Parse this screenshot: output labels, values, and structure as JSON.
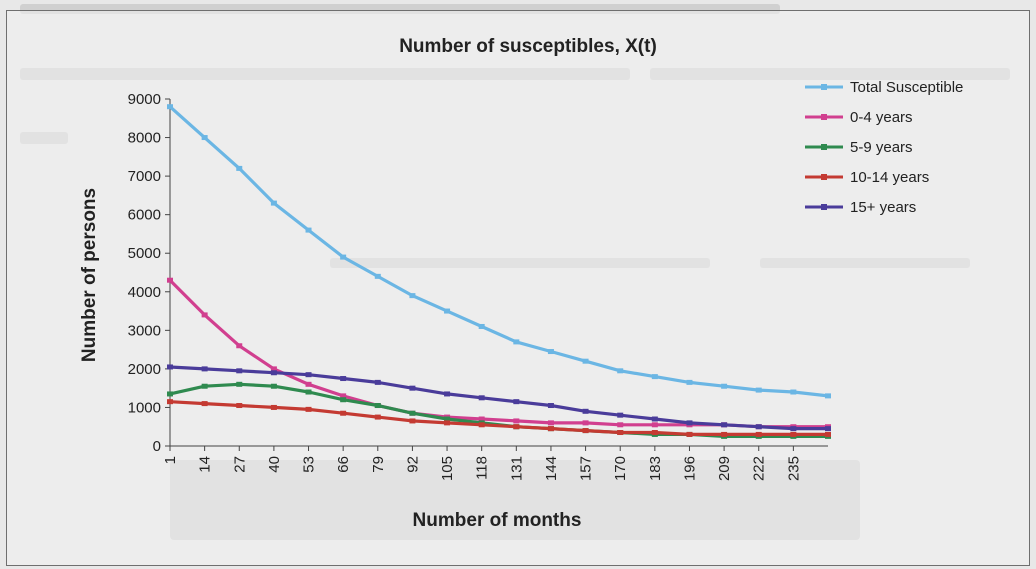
{
  "chart_data": {
    "type": "line",
    "title": "Number of susceptibles, X(t)",
    "xlabel": "Number of months",
    "ylabel": "Number of persons",
    "x_ticks": [
      1,
      14,
      27,
      40,
      53,
      66,
      79,
      92,
      105,
      118,
      131,
      144,
      157,
      170,
      183,
      196,
      209,
      222,
      235
    ],
    "ylim": [
      0,
      9000
    ],
    "y_ticks": [
      0,
      1000,
      2000,
      3000,
      4000,
      5000,
      6000,
      7000,
      8000,
      9000
    ],
    "x_range": [
      1,
      248
    ],
    "grid": false,
    "legend_position": "top-right",
    "series": [
      {
        "name": "Total Susceptible",
        "color": "#6bb6e4",
        "x": [
          1,
          14,
          27,
          40,
          53,
          66,
          79,
          92,
          105,
          118,
          131,
          144,
          157,
          170,
          183,
          196,
          209,
          222,
          235,
          248
        ],
        "values": [
          8800,
          8000,
          7200,
          6300,
          5600,
          4900,
          4400,
          3900,
          3500,
          3100,
          2700,
          2450,
          2200,
          1950,
          1800,
          1650,
          1550,
          1450,
          1400,
          1300
        ]
      },
      {
        "name": "0-4 years",
        "color": "#d13f8f",
        "x": [
          1,
          14,
          27,
          40,
          53,
          66,
          79,
          92,
          105,
          118,
          131,
          144,
          157,
          170,
          183,
          196,
          209,
          222,
          235,
          248
        ],
        "values": [
          4300,
          3400,
          2600,
          2000,
          1600,
          1300,
          1050,
          850,
          750,
          700,
          650,
          600,
          600,
          550,
          550,
          550,
          550,
          500,
          500,
          500
        ]
      },
      {
        "name": "5-9 years",
        "color": "#2f8a4f",
        "x": [
          1,
          14,
          27,
          40,
          53,
          66,
          79,
          92,
          105,
          118,
          131,
          144,
          157,
          170,
          183,
          196,
          209,
          222,
          235,
          248
        ],
        "values": [
          1350,
          1550,
          1600,
          1550,
          1400,
          1200,
          1050,
          850,
          700,
          600,
          500,
          450,
          400,
          350,
          300,
          300,
          250,
          250,
          250,
          250
        ]
      },
      {
        "name": "10-14 years",
        "color": "#c43a32",
        "x": [
          1,
          14,
          27,
          40,
          53,
          66,
          79,
          92,
          105,
          118,
          131,
          144,
          157,
          170,
          183,
          196,
          209,
          222,
          235,
          248
        ],
        "values": [
          1150,
          1100,
          1050,
          1000,
          950,
          850,
          750,
          650,
          600,
          550,
          500,
          450,
          400,
          350,
          350,
          300,
          300,
          300,
          300,
          300
        ]
      },
      {
        "name": "15+ years",
        "color": "#4a3c9a",
        "x": [
          1,
          14,
          27,
          40,
          53,
          66,
          79,
          92,
          105,
          118,
          131,
          144,
          157,
          170,
          183,
          196,
          209,
          222,
          235,
          248
        ],
        "values": [
          2050,
          2000,
          1950,
          1900,
          1850,
          1750,
          1650,
          1500,
          1350,
          1250,
          1150,
          1050,
          900,
          800,
          700,
          600,
          550,
          500,
          450,
          450
        ]
      }
    ]
  }
}
